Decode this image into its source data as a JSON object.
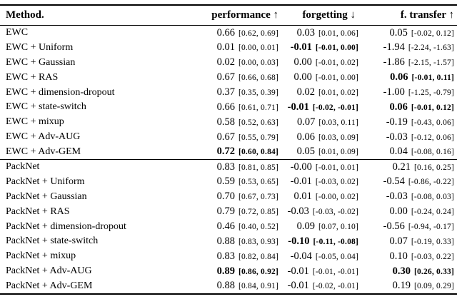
{
  "table": {
    "columns": [
      "Method.",
      "performance ↑",
      "forgetting ↓",
      "f. transfer ↑"
    ],
    "groups": [
      {
        "name": "EWC",
        "rows": [
          {
            "method": "EWC",
            "performance": {
              "value": "0.66",
              "ci": "[0.62, 0.69]",
              "bold": false
            },
            "forgetting": {
              "value": "0.03",
              "ci": "[0.01, 0.06]",
              "bold": false
            },
            "transfer": {
              "value": "0.05",
              "ci": "[-0.02, 0.12]",
              "bold": false
            }
          },
          {
            "method": "EWC + Uniform",
            "performance": {
              "value": "0.01",
              "ci": "[0.00, 0.01]",
              "bold": false
            },
            "forgetting": {
              "value": "-0.01",
              "ci": "[-0.01, 0.00]",
              "bold": true
            },
            "transfer": {
              "value": "-1.94",
              "ci": "[-2.24, -1.63]",
              "bold": false
            }
          },
          {
            "method": "EWC + Gaussian",
            "performance": {
              "value": "0.02",
              "ci": "[0.00, 0.03]",
              "bold": false
            },
            "forgetting": {
              "value": "0.00",
              "ci": "[-0.01, 0.02]",
              "bold": false
            },
            "transfer": {
              "value": "-1.86",
              "ci": "[-2.15, -1.57]",
              "bold": false
            }
          },
          {
            "method": "EWC + RAS",
            "performance": {
              "value": "0.67",
              "ci": "[0.66, 0.68]",
              "bold": false
            },
            "forgetting": {
              "value": "0.00",
              "ci": "[-0.01, 0.00]",
              "bold": false
            },
            "transfer": {
              "value": "0.06",
              "ci": "[-0.01, 0.11]",
              "bold": true
            }
          },
          {
            "method": "EWC + dimension-dropout",
            "performance": {
              "value": "0.37",
              "ci": "[0.35, 0.39]",
              "bold": false
            },
            "forgetting": {
              "value": "0.02",
              "ci": "[0.01, 0.02]",
              "bold": false
            },
            "transfer": {
              "value": "-1.00",
              "ci": "[-1.25, -0.79]",
              "bold": false
            }
          },
          {
            "method": "EWC + state-switch",
            "performance": {
              "value": "0.66",
              "ci": "[0.61, 0.71]",
              "bold": false
            },
            "forgetting": {
              "value": "-0.01",
              "ci": "[-0.02, -0.01]",
              "bold": true
            },
            "transfer": {
              "value": "0.06",
              "ci": "[-0.01, 0.12]",
              "bold": true
            }
          },
          {
            "method": "EWC + mixup",
            "performance": {
              "value": "0.58",
              "ci": "[0.52, 0.63]",
              "bold": false
            },
            "forgetting": {
              "value": "0.07",
              "ci": "[0.03, 0.11]",
              "bold": false
            },
            "transfer": {
              "value": "-0.19",
              "ci": "[-0.43, 0.06]",
              "bold": false
            }
          },
          {
            "method": "EWC + Adv-AUG",
            "performance": {
              "value": "0.67",
              "ci": "[0.55, 0.79]",
              "bold": false
            },
            "forgetting": {
              "value": "0.06",
              "ci": "[0.03, 0.09]",
              "bold": false
            },
            "transfer": {
              "value": "-0.03",
              "ci": "[-0.12, 0.06]",
              "bold": false
            }
          },
          {
            "method": "EWC + Adv-GEM",
            "performance": {
              "value": "0.72",
              "ci": "[0.60, 0.84]",
              "bold": true
            },
            "forgetting": {
              "value": "0.05",
              "ci": "[0.01, 0.09]",
              "bold": false
            },
            "transfer": {
              "value": "0.04",
              "ci": "[-0.08, 0.16]",
              "bold": false
            }
          }
        ]
      },
      {
        "name": "PackNet",
        "rows": [
          {
            "method": "PackNet",
            "performance": {
              "value": "0.83",
              "ci": "[0.81, 0.85]",
              "bold": false
            },
            "forgetting": {
              "value": "-0.00",
              "ci": "[-0.01, 0.01]",
              "bold": false
            },
            "transfer": {
              "value": "0.21",
              "ci": "[0.16, 0.25]",
              "bold": false
            }
          },
          {
            "method": "PackNet + Uniform",
            "performance": {
              "value": "0.59",
              "ci": "[0.53, 0.65]",
              "bold": false
            },
            "forgetting": {
              "value": "-0.01",
              "ci": "[-0.03, 0.02]",
              "bold": false
            },
            "transfer": {
              "value": "-0.54",
              "ci": "[-0.86, -0.22]",
              "bold": false
            }
          },
          {
            "method": "PackNet + Gaussian",
            "performance": {
              "value": "0.70",
              "ci": "[0.67, 0.73]",
              "bold": false
            },
            "forgetting": {
              "value": "0.01",
              "ci": "[-0.00, 0.02]",
              "bold": false
            },
            "transfer": {
              "value": "-0.03",
              "ci": "[-0.08, 0.03]",
              "bold": false
            }
          },
          {
            "method": "PackNet + RAS",
            "performance": {
              "value": "0.79",
              "ci": "[0.72, 0.85]",
              "bold": false
            },
            "forgetting": {
              "value": "-0.03",
              "ci": "[-0.03, -0.02]",
              "bold": false
            },
            "transfer": {
              "value": "0.00",
              "ci": "[-0.24, 0.24]",
              "bold": false
            }
          },
          {
            "method": "PackNet + dimension-dropout",
            "performance": {
              "value": "0.46",
              "ci": "[0.40, 0.52]",
              "bold": false
            },
            "forgetting": {
              "value": "0.09",
              "ci": "[0.07, 0.10]",
              "bold": false
            },
            "transfer": {
              "value": "-0.56",
              "ci": "[-0.94, -0.17]",
              "bold": false
            }
          },
          {
            "method": "PackNet + state-switch",
            "performance": {
              "value": "0.88",
              "ci": "[0.83, 0.93]",
              "bold": false
            },
            "forgetting": {
              "value": "-0.10",
              "ci": "[-0.11, -0.08]",
              "bold": true
            },
            "transfer": {
              "value": "0.07",
              "ci": "[-0.19, 0.33]",
              "bold": false
            }
          },
          {
            "method": "PackNet + mixup",
            "performance": {
              "value": "0.83",
              "ci": "[0.82, 0.84]",
              "bold": false
            },
            "forgetting": {
              "value": "-0.04",
              "ci": "[-0.05, 0.04]",
              "bold": false
            },
            "transfer": {
              "value": "0.10",
              "ci": "[-0.03, 0.22]",
              "bold": false
            }
          },
          {
            "method": "PackNet + Adv-AUG",
            "performance": {
              "value": "0.89",
              "ci": "[0.86, 0.92]",
              "bold": true
            },
            "forgetting": {
              "value": "-0.01",
              "ci": "[-0.01, -0.01]",
              "bold": false
            },
            "transfer": {
              "value": "0.30",
              "ci": "[0.26, 0.33]",
              "bold": true
            }
          },
          {
            "method": "PackNet + Adv-GEM",
            "performance": {
              "value": "0.88",
              "ci": "[0.84, 0.91]",
              "bold": false
            },
            "forgetting": {
              "value": "-0.01",
              "ci": "[-0.02, -0.01]",
              "bold": false
            },
            "transfer": {
              "value": "0.19",
              "ci": "[0.09, 0.29]",
              "bold": false
            }
          }
        ]
      }
    ]
  }
}
